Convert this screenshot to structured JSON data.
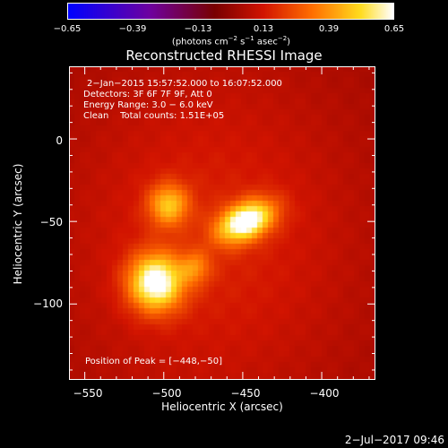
{
  "colorbar": {
    "ticks": [
      "−0.65",
      "−0.39",
      "−0.13",
      "0.13",
      "0.39",
      "0.65"
    ],
    "unit_parts": {
      "a": "(photons cm",
      "a_sup": "−2",
      "b": " s",
      "b_sup": "−1",
      "c": " asec",
      "c_sup": "−2",
      "d": ")"
    }
  },
  "chart_data": {
    "type": "heatmap",
    "title": "Reconstructed RHESSI Image",
    "xlabel": "Heliocentric X (arcsec)",
    "ylabel": "Heliocentric Y (arcsec)",
    "xlim": [
      -560,
      -366
    ],
    "ylim": [
      -146,
      44
    ],
    "x_ticks": [
      -550,
      -500,
      -450,
      -400
    ],
    "x_tick_labels": [
      "−550",
      "−500",
      "−450",
      "−400"
    ],
    "y_ticks": [
      0,
      -50,
      -100
    ],
    "y_tick_labels": [
      "0",
      "−50",
      "−100"
    ],
    "color_range": [
      -0.65,
      0.65
    ],
    "sources": [
      {
        "x": -448,
        "y": -50,
        "peak": 0.65
      },
      {
        "x": -505,
        "y": -87,
        "peak": 0.64
      },
      {
        "x": -497,
        "y": -40,
        "peak": 0.4
      },
      {
        "x": -480,
        "y": -78,
        "peak": 0.25
      }
    ],
    "annotations": [
      "2−Jan−2015 15:57:52.000 to 16:07:52.000",
      "Detectors: 3F 6F 7F 9F, Att 0",
      "Energy Range: 3.0 − 6.0 keV",
      "Clean    Total counts: 1.51E+05"
    ],
    "peak_label": "Position of Peak = [−448,−50]"
  },
  "footer": "2−Jul−2017 09:46"
}
